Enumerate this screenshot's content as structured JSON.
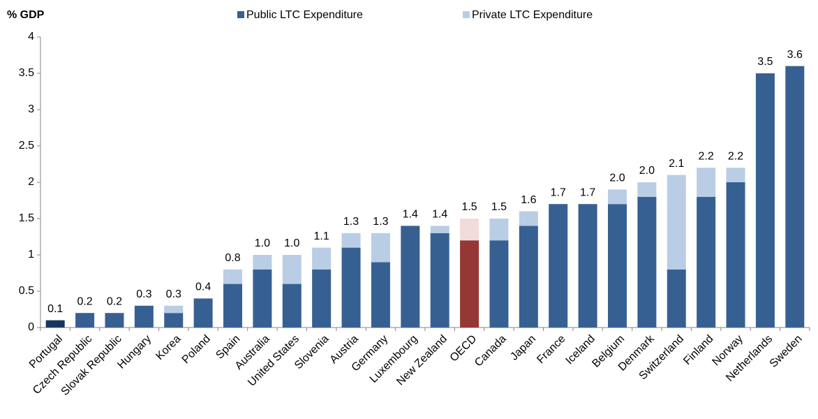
{
  "chart_data": {
    "type": "stacked-bar",
    "ylabel": "% GDP",
    "categories": [
      "Portugal",
      "Czech Republic",
      "Slovak Republic",
      "Hungary",
      "Korea",
      "Poland",
      "Spain",
      "Australia",
      "United States",
      "Slovenia",
      "Austria",
      "Germany",
      "Luxembourg",
      "New Zealand",
      "OECD",
      "Canada",
      "Japan",
      "France",
      "Iceland",
      "Belgium",
      "Denmark",
      "Switzerland",
      "Finland",
      "Norway",
      "Netherlands",
      "Sweden"
    ],
    "series": [
      {
        "name": "Public LTC Expenditure",
        "color": "#376092",
        "colors": [
          "#17375e",
          "#376092",
          "#376092",
          "#376092",
          "#376092",
          "#376092",
          "#376092",
          "#376092",
          "#376092",
          "#376092",
          "#376092",
          "#376092",
          "#376092",
          "#376092",
          "#953735",
          "#376092",
          "#376092",
          "#376092",
          "#376092",
          "#376092",
          "#376092",
          "#376092",
          "#376092",
          "#376092",
          "#376092",
          "#376092"
        ],
        "values": [
          0.1,
          0.2,
          0.2,
          0.3,
          0.2,
          0.4,
          0.6,
          0.8,
          0.6,
          0.8,
          1.1,
          0.9,
          1.4,
          1.3,
          1.2,
          1.2,
          1.4,
          1.7,
          1.7,
          1.7,
          1.8,
          0.8,
          1.8,
          2.0,
          3.5,
          3.6
        ]
      },
      {
        "name": "Private LTC Expenditure",
        "color": "#b9cde5",
        "colors": [
          "#b9cde5",
          "#b9cde5",
          "#b9cde5",
          "#b9cde5",
          "#b9cde5",
          "#b9cde5",
          "#b9cde5",
          "#b9cde5",
          "#b9cde5",
          "#b9cde5",
          "#b9cde5",
          "#b9cde5",
          "#b9cde5",
          "#b9cde5",
          "#f2dcdb",
          "#b9cde5",
          "#b9cde5",
          "#b9cde5",
          "#b9cde5",
          "#b9cde5",
          "#b9cde5",
          "#b9cde5",
          "#b9cde5",
          "#b9cde5",
          "#b9cde5",
          "#b9cde5"
        ],
        "values": [
          0,
          0,
          0,
          0,
          0.1,
          0,
          0.2,
          0.2,
          0.4,
          0.3,
          0.2,
          0.4,
          0,
          0.1,
          0.3,
          0.3,
          0.2,
          0,
          0,
          0.2,
          0.2,
          1.3,
          0.4,
          0.2,
          0,
          0
        ]
      }
    ],
    "total_labels": [
      "0.1",
      "0.2",
      "0.2",
      "0.3",
      "0.3",
      "0.4",
      "0.8",
      "1.0",
      "1.0",
      "1.1",
      "1.3",
      "1.3",
      "1.4",
      "1.4",
      "1.5",
      "1.5",
      "1.6",
      "1.7",
      "1.7",
      "2.0",
      "2.0",
      "2.1",
      "2.2",
      "2.2",
      "3.5",
      "3.6"
    ],
    "ylim": [
      0,
      4
    ],
    "yticks": [
      0,
      0.5,
      1,
      1.5,
      2,
      2.5,
      3,
      3.5,
      4
    ],
    "grid": false
  }
}
